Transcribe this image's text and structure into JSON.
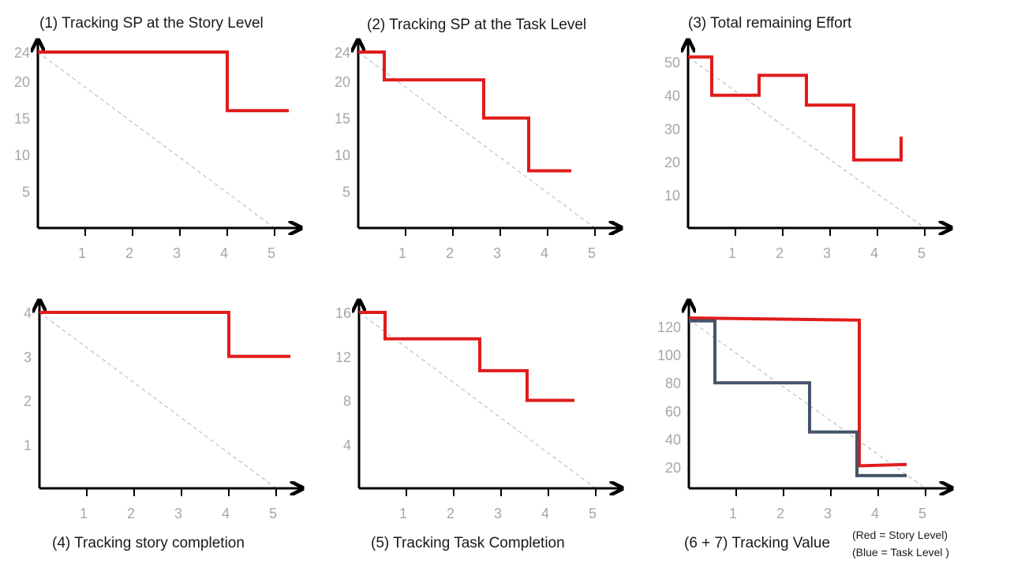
{
  "legend_note": {
    "red": "(Red =  Story Level)",
    "blue": "(Blue = Task Level  )"
  },
  "colors": {
    "red": "#e01b1b",
    "blue": "#44546a",
    "axis": "#000000",
    "ideal": "#bfbfbf",
    "tick": "#a6a6a6"
  },
  "chart_data": [
    {
      "type": "line",
      "title": "(1) Tracking SP at the Story Level",
      "xlabel": "",
      "ylabel": "",
      "x_ticks": [
        1,
        2,
        3,
        4,
        5
      ],
      "y_ticks": [
        5,
        10,
        15,
        20,
        24
      ],
      "xlim": [
        0,
        5.3
      ],
      "ylim": [
        0,
        24
      ],
      "ideal": [
        [
          0,
          24
        ],
        [
          5,
          0
        ]
      ],
      "series": [
        {
          "color": "red",
          "step": true,
          "points": [
            [
              0,
              24
            ],
            [
              4,
              24
            ],
            [
              4,
              16
            ],
            [
              5.3,
              16
            ]
          ]
        }
      ]
    },
    {
      "type": "line",
      "title": "(2) Tracking SP at the Task Level",
      "xlabel": "",
      "ylabel": "",
      "x_ticks": [
        1,
        2,
        3,
        4,
        5
      ],
      "y_ticks": [
        5,
        10,
        15,
        20,
        24
      ],
      "xlim": [
        0,
        5.3
      ],
      "ylim": [
        0,
        24
      ],
      "ideal": [
        [
          0,
          24
        ],
        [
          5,
          0
        ]
      ],
      "series": [
        {
          "color": "red",
          "step": true,
          "points": [
            [
              0,
              24
            ],
            [
              0.55,
              24
            ],
            [
              0.55,
              20.2
            ],
            [
              2.65,
              20.2
            ],
            [
              2.65,
              15
            ],
            [
              3.6,
              15
            ],
            [
              3.6,
              7.8
            ],
            [
              4.5,
              7.8
            ]
          ]
        }
      ]
    },
    {
      "type": "line",
      "title": "(3) Total remaining Effort",
      "xlabel": "",
      "ylabel": "",
      "x_ticks": [
        1,
        2,
        3,
        4,
        5
      ],
      "y_ticks": [
        10,
        20,
        30,
        40,
        50
      ],
      "xlim": [
        0,
        5.3
      ],
      "ylim": [
        0,
        53
      ],
      "ideal": [
        [
          0,
          51.5
        ],
        [
          5,
          0
        ]
      ],
      "series": [
        {
          "color": "red",
          "step": true,
          "points": [
            [
              0,
              51.5
            ],
            [
              0.5,
              51.5
            ],
            [
              0.5,
              40
            ],
            [
              1.5,
              40
            ],
            [
              1.5,
              46
            ],
            [
              2.5,
              46
            ],
            [
              2.5,
              37
            ],
            [
              3.5,
              37
            ],
            [
              3.5,
              20.5
            ],
            [
              4.5,
              20.5
            ],
            [
              4.5,
              27.5
            ]
          ]
        }
      ]
    },
    {
      "type": "line",
      "title": "(4) Tracking story completion",
      "xlabel": "",
      "ylabel": "",
      "x_ticks": [
        1,
        2,
        3,
        4,
        5
      ],
      "y_ticks": [
        1,
        2,
        3,
        4
      ],
      "xlim": [
        0,
        5.3
      ],
      "ylim": [
        0,
        4
      ],
      "ideal": [
        [
          0,
          4
        ],
        [
          5,
          0
        ]
      ],
      "series": [
        {
          "color": "red",
          "step": true,
          "points": [
            [
              0,
              4
            ],
            [
              4,
              4
            ],
            [
              4,
              3
            ],
            [
              5.3,
              3
            ]
          ]
        }
      ]
    },
    {
      "type": "line",
      "title": "(5) Tracking Task Completion",
      "xlabel": "",
      "ylabel": "",
      "x_ticks": [
        1,
        2,
        3,
        4,
        5
      ],
      "y_ticks": [
        4,
        8,
        12,
        16
      ],
      "xlim": [
        0,
        5.3
      ],
      "ylim": [
        0,
        16
      ],
      "ideal": [
        [
          0,
          16
        ],
        [
          5,
          0
        ]
      ],
      "series": [
        {
          "color": "red",
          "step": true,
          "points": [
            [
              0,
              16
            ],
            [
              0.55,
              16
            ],
            [
              0.55,
              13.6
            ],
            [
              2.55,
              13.6
            ],
            [
              2.55,
              10.7
            ],
            [
              3.55,
              10.7
            ],
            [
              3.55,
              8
            ],
            [
              4.55,
              8
            ]
          ]
        }
      ]
    },
    {
      "type": "line",
      "title": "(6 + 7) Tracking Value",
      "xlabel": "",
      "ylabel": "",
      "x_ticks": [
        1,
        2,
        3,
        4,
        5
      ],
      "y_ticks": [
        20,
        40,
        60,
        80,
        100,
        120
      ],
      "xlim": [
        0,
        5.3
      ],
      "ylim": [
        5,
        130
      ],
      "ideal": [
        [
          0,
          125
        ],
        [
          5,
          5
        ]
      ],
      "series": [
        {
          "color": "red",
          "step": true,
          "points": [
            [
              0,
              126
            ],
            [
              3.6,
              124.5
            ],
            [
              3.6,
              21
            ],
            [
              4.6,
              22
            ]
          ]
        },
        {
          "color": "blue",
          "step": true,
          "points": [
            [
              0,
              124
            ],
            [
              0.55,
              124
            ],
            [
              0.55,
              80
            ],
            [
              2.55,
              80
            ],
            [
              2.55,
              45
            ],
            [
              3.55,
              45
            ],
            [
              3.55,
              14
            ],
            [
              4.6,
              14
            ]
          ]
        }
      ]
    }
  ]
}
